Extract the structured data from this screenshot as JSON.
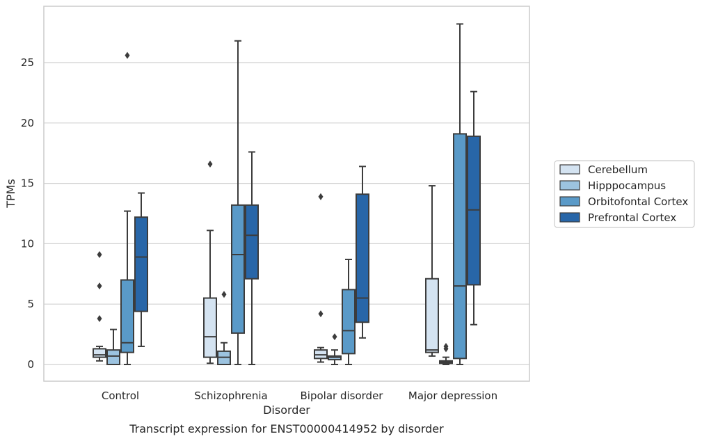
{
  "chart_data": {
    "type": "boxplot",
    "title": "",
    "caption": "Transcript expression for ENST00000414952 by disorder",
    "xlabel": "Disorder",
    "ylabel": "TPMs",
    "categories": [
      "Control",
      "Schizophrenia",
      "Bipolar disorder",
      "Major depression"
    ],
    "ylim": [
      -1.3,
      29.5
    ],
    "yticks": [
      0,
      5,
      10,
      15,
      20,
      25
    ],
    "grid": "horizontal",
    "legend_position": "right",
    "series": [
      {
        "name": "Cerebellum",
        "color": "#d4e3f1",
        "boxes": [
          {
            "whislo": 0.3,
            "q1": 0.6,
            "med": 0.8,
            "q3": 1.3,
            "whishi": 1.5,
            "fliers": [
              3.8,
              6.5,
              9.1
            ]
          },
          {
            "whislo": 0.1,
            "q1": 0.6,
            "med": 2.3,
            "q3": 5.5,
            "whishi": 11.1,
            "fliers": [
              16.6
            ]
          },
          {
            "whislo": 0.2,
            "q1": 0.5,
            "med": 0.8,
            "q3": 1.2,
            "whishi": 1.4,
            "fliers": [
              4.2,
              13.9
            ]
          },
          {
            "whislo": 0.7,
            "q1": 1.0,
            "med": 1.2,
            "q3": 7.1,
            "whishi": 14.8,
            "fliers": []
          }
        ]
      },
      {
        "name": "Hipppocampus",
        "color": "#9cc3e0",
        "boxes": [
          {
            "whislo": 0.0,
            "q1": 0.0,
            "med": 0.7,
            "q3": 1.2,
            "whishi": 2.9,
            "fliers": []
          },
          {
            "whislo": 0.0,
            "q1": 0.0,
            "med": 0.6,
            "q3": 1.1,
            "whishi": 1.8,
            "fliers": [
              5.8
            ]
          },
          {
            "whislo": 0.0,
            "q1": 0.4,
            "med": 0.6,
            "q3": 0.7,
            "whishi": 1.2,
            "fliers": [
              2.3
            ]
          },
          {
            "whislo": 0.0,
            "q1": 0.1,
            "med": 0.2,
            "q3": 0.3,
            "whishi": 0.6,
            "fliers": [
              1.3,
              1.5
            ]
          }
        ]
      },
      {
        "name": "Orbitofontal Cortex",
        "color": "#5a9ac8",
        "boxes": [
          {
            "whislo": 0.0,
            "q1": 1.0,
            "med": 1.8,
            "q3": 7.0,
            "whishi": 12.7,
            "fliers": [
              25.6
            ]
          },
          {
            "whislo": 0.0,
            "q1": 2.6,
            "med": 9.1,
            "q3": 13.2,
            "whishi": 26.8,
            "fliers": []
          },
          {
            "whislo": 0.0,
            "q1": 0.9,
            "med": 2.8,
            "q3": 6.2,
            "whishi": 8.7,
            "fliers": []
          },
          {
            "whislo": 0.0,
            "q1": 0.5,
            "med": 6.5,
            "q3": 19.1,
            "whishi": 28.2,
            "fliers": []
          }
        ]
      },
      {
        "name": "Prefrontal Cortex",
        "color": "#2866a8",
        "boxes": [
          {
            "whislo": 1.5,
            "q1": 4.4,
            "med": 8.9,
            "q3": 12.2,
            "whishi": 14.2,
            "fliers": []
          },
          {
            "whislo": 0.0,
            "q1": 7.1,
            "med": 10.7,
            "q3": 13.2,
            "whishi": 17.6,
            "fliers": []
          },
          {
            "whislo": 2.2,
            "q1": 3.5,
            "med": 5.5,
            "q3": 14.1,
            "whishi": 16.4,
            "fliers": []
          },
          {
            "whislo": 3.3,
            "q1": 6.6,
            "med": 12.8,
            "q3": 18.9,
            "whishi": 22.6,
            "fliers": []
          }
        ]
      }
    ]
  }
}
